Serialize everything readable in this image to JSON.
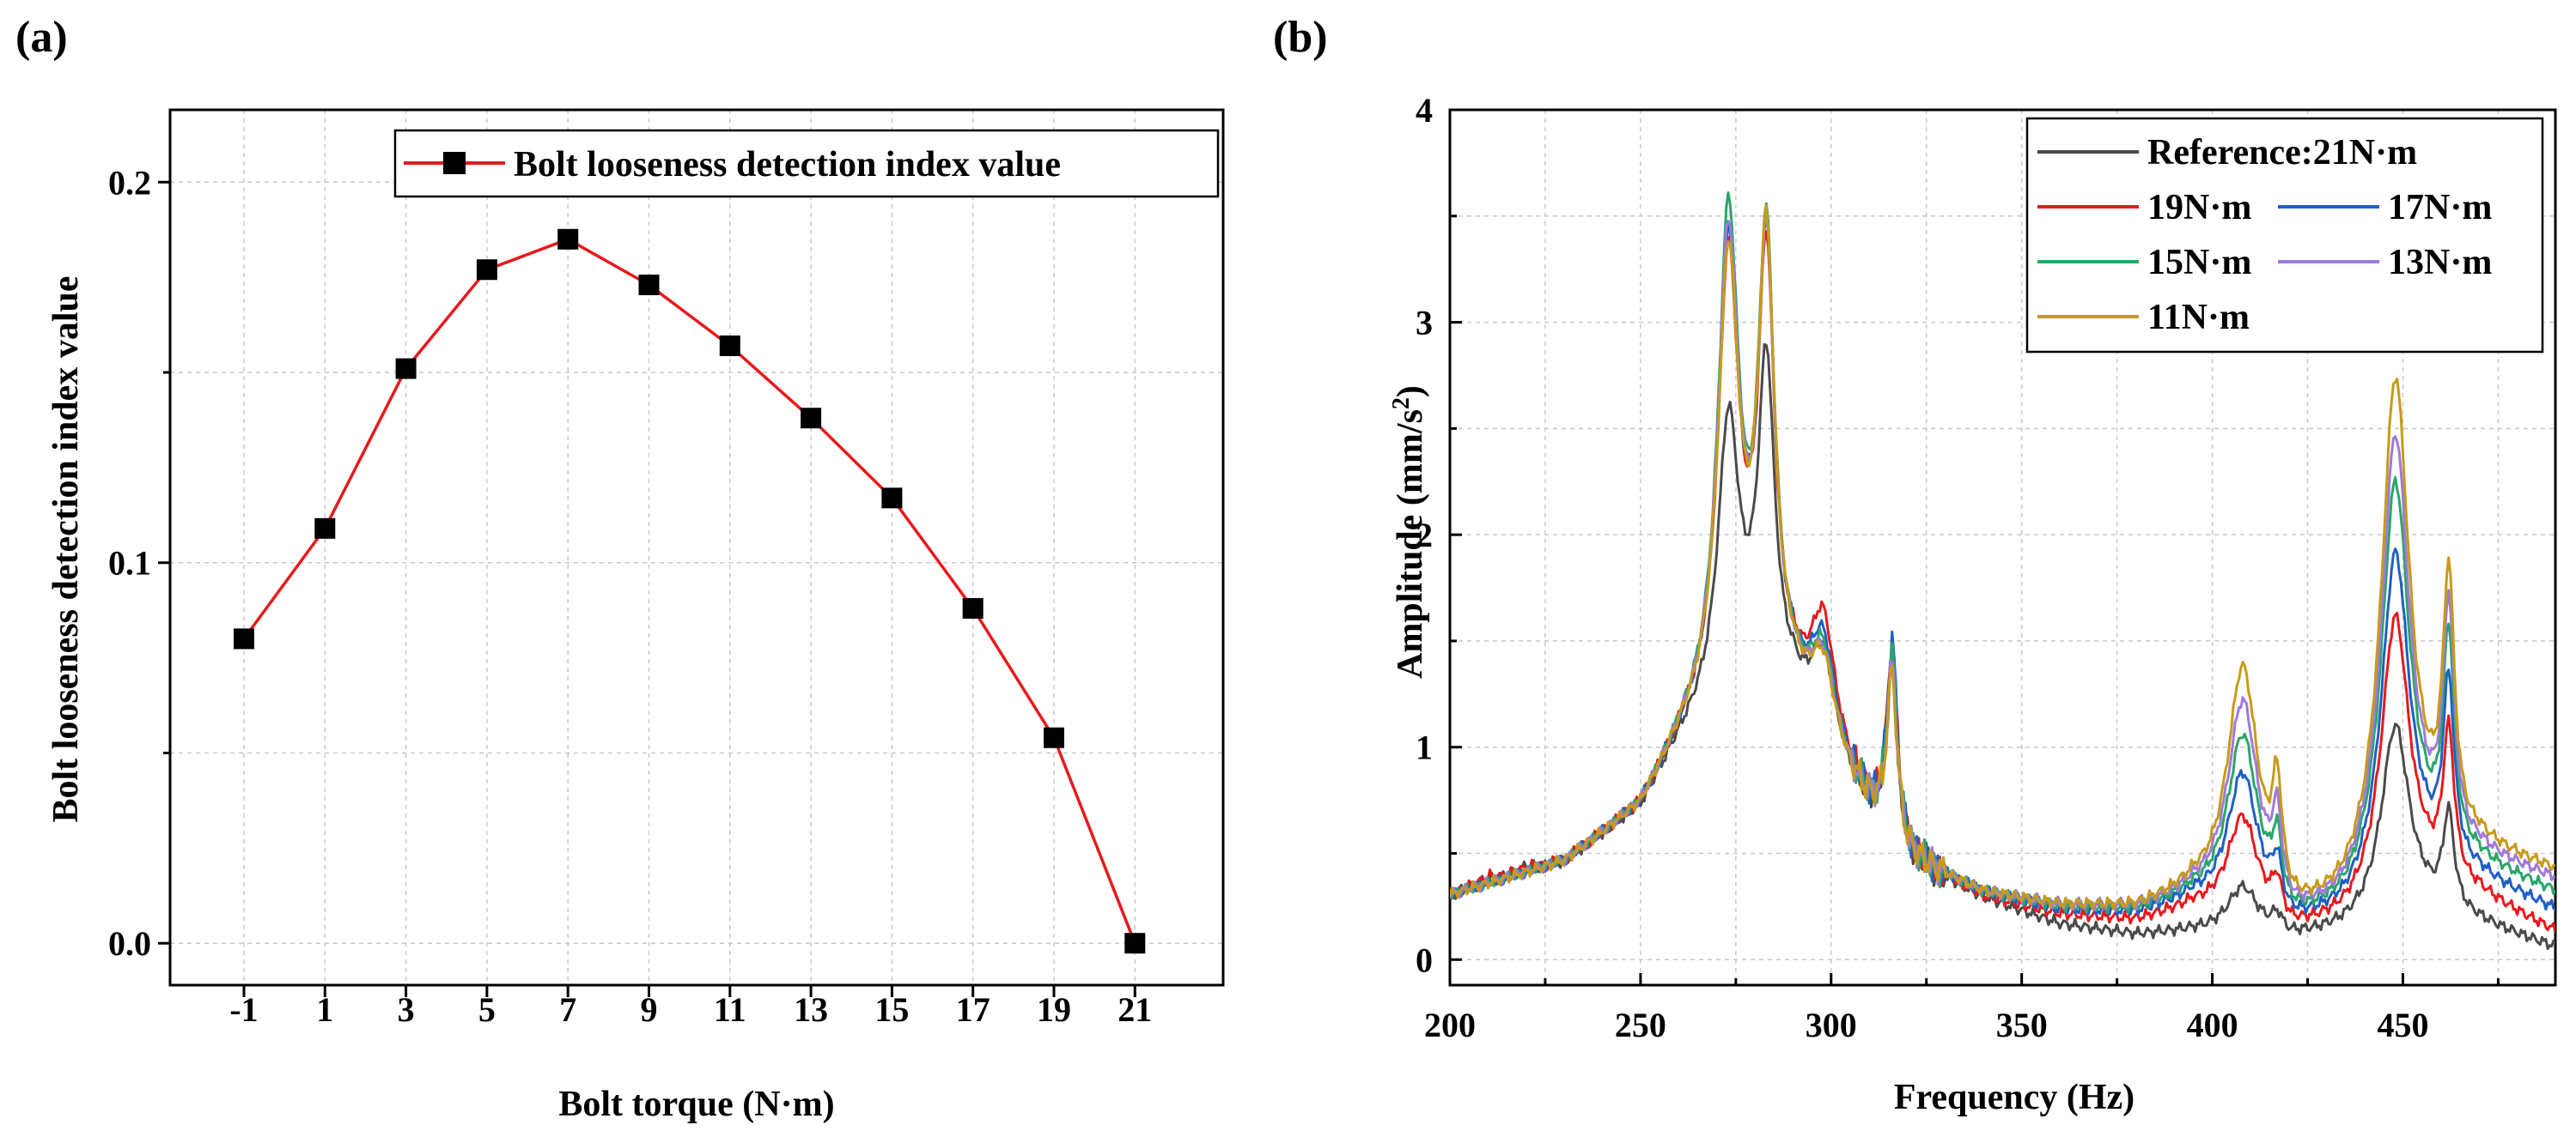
{
  "chart_data": [
    {
      "panel_label": "(a)",
      "type": "line",
      "title": "",
      "xlabel": "Bolt torque (N·m)",
      "ylabel": "Bolt looseness detection index value",
      "categories": [
        "-1",
        "1",
        "3",
        "5",
        "7",
        "9",
        "11",
        "13",
        "15",
        "17",
        "19",
        "21"
      ],
      "series": [
        {
          "name": "Bolt looseness detection index value",
          "color": "#e8191c",
          "marker": "square",
          "values": [
            0.08,
            0.109,
            0.151,
            0.177,
            0.185,
            0.173,
            0.157,
            0.138,
            0.117,
            0.088,
            0.054,
            0.0
          ]
        }
      ],
      "y_ticks": [
        0.0,
        0.1,
        0.2
      ],
      "y_tick_labels": [
        "0.0",
        "0.1",
        "0.2"
      ],
      "ylim": [
        -0.011,
        0.219
      ],
      "grid": true,
      "legend": "top-right"
    },
    {
      "panel_label": "(b)",
      "type": "line",
      "title": "",
      "xlabel": "Frequency (Hz)",
      "ylabel": "Amplitude (mm/s",
      "ylabel_sup": "2",
      "ylabel_close": ")",
      "xlim": [
        200,
        490
      ],
      "ylim": [
        -0.12,
        4.0
      ],
      "x_ticks": [
        200,
        250,
        300,
        350,
        400,
        450
      ],
      "x_tick_labels": [
        "200",
        "250",
        "300",
        "350",
        "400",
        "450"
      ],
      "y_ticks": [
        0,
        1,
        2,
        3,
        4
      ],
      "y_tick_labels": [
        "0",
        "1",
        "2",
        "3",
        "4"
      ],
      "grid": true,
      "legend": "top-right",
      "peak_positions_hz": [
        210,
        220,
        273,
        278,
        283,
        298,
        316,
        408,
        417,
        448,
        462
      ],
      "series": [
        {
          "name": "Reference:21N·m",
          "color": "#4a4a4a",
          "baseline": [
            [
              200,
              0.3
            ],
            [
              230,
              0.45
            ],
            [
              250,
              0.7
            ],
            [
              260,
              1.0
            ],
            [
              275,
              1.35
            ],
            [
              290,
              1.2
            ],
            [
              300,
              0.9
            ],
            [
              320,
              0.45
            ],
            [
              340,
              0.28
            ],
            [
              360,
              0.16
            ],
            [
              380,
              0.11
            ],
            [
              395,
              0.12
            ],
            [
              420,
              0.08
            ],
            [
              435,
              0.12
            ],
            [
              455,
              0.2
            ],
            [
              470,
              0.16
            ],
            [
              490,
              0.05
            ]
          ],
          "peaks": [
            0.02,
            0.03,
            1.2,
            0.0,
            1.5,
            0.45,
            0.85,
            0.23,
            0.08,
            0.92,
            0.45
          ]
        },
        {
          "name": "19N·m",
          "color": "#e8191c",
          "baseline": [
            [
              200,
              0.3
            ],
            [
              230,
              0.45
            ],
            [
              250,
              0.7
            ],
            [
              260,
              1.0
            ],
            [
              275,
              1.35
            ],
            [
              290,
              1.2
            ],
            [
              300,
              0.9
            ],
            [
              320,
              0.45
            ],
            [
              340,
              0.28
            ],
            [
              360,
              0.2
            ],
            [
              380,
              0.17
            ],
            [
              395,
              0.22
            ],
            [
              420,
              0.09
            ],
            [
              435,
              0.15
            ],
            [
              455,
              0.3
            ],
            [
              470,
              0.28
            ],
            [
              490,
              0.12
            ]
          ],
          "peaks": [
            0.03,
            0.02,
            1.95,
            0.0,
            1.95,
            0.6,
            0.9,
            0.5,
            0.17,
            1.35,
            0.7
          ]
        },
        {
          "name": "17N·m",
          "color": "#1f5fc4",
          "baseline": [
            [
              200,
              0.3
            ],
            [
              230,
              0.45
            ],
            [
              250,
              0.7
            ],
            [
              260,
              1.0
            ],
            [
              275,
              1.35
            ],
            [
              290,
              1.2
            ],
            [
              300,
              0.9
            ],
            [
              320,
              0.45
            ],
            [
              340,
              0.3
            ],
            [
              360,
              0.22
            ],
            [
              380,
              0.2
            ],
            [
              395,
              0.25
            ],
            [
              420,
              0.1
            ],
            [
              435,
              0.17
            ],
            [
              455,
              0.36
            ],
            [
              470,
              0.36
            ],
            [
              490,
              0.22
            ]
          ],
          "peaks": [
            0.0,
            0.0,
            2.0,
            0.0,
            2.02,
            0.5,
            0.92,
            0.68,
            0.22,
            1.6,
            0.85
          ]
        },
        {
          "name": "15N·m",
          "color": "#2aa66a",
          "baseline": [
            [
              200,
              0.3
            ],
            [
              230,
              0.45
            ],
            [
              250,
              0.7
            ],
            [
              260,
              1.0
            ],
            [
              275,
              1.35
            ],
            [
              290,
              1.2
            ],
            [
              300,
              0.9
            ],
            [
              320,
              0.45
            ],
            [
              340,
              0.3
            ],
            [
              360,
              0.23
            ],
            [
              380,
              0.21
            ],
            [
              395,
              0.26
            ],
            [
              420,
              0.1
            ],
            [
              435,
              0.18
            ],
            [
              455,
              0.4
            ],
            [
              470,
              0.42
            ],
            [
              490,
              0.3
            ]
          ],
          "peaks": [
            0.0,
            0.0,
            2.15,
            0.0,
            2.05,
            0.45,
            0.85,
            0.85,
            0.3,
            1.9,
            1.0
          ]
        },
        {
          "name": "13N·m",
          "color": "#a07ad8",
          "baseline": [
            [
              200,
              0.3
            ],
            [
              230,
              0.45
            ],
            [
              250,
              0.7
            ],
            [
              260,
              1.0
            ],
            [
              275,
              1.35
            ],
            [
              290,
              1.2
            ],
            [
              300,
              0.9
            ],
            [
              320,
              0.45
            ],
            [
              340,
              0.3
            ],
            [
              360,
              0.24
            ],
            [
              380,
              0.22
            ],
            [
              395,
              0.27
            ],
            [
              420,
              0.1
            ],
            [
              435,
              0.19
            ],
            [
              455,
              0.42
            ],
            [
              470,
              0.46
            ],
            [
              490,
              0.36
            ]
          ],
          "peaks": [
            0.0,
            0.0,
            2.05,
            0.0,
            2.0,
            0.42,
            0.8,
            1.0,
            0.38,
            2.1,
            1.1
          ]
        },
        {
          "name": "11N·m",
          "color": "#c89a1a",
          "baseline": [
            [
              200,
              0.3
            ],
            [
              230,
              0.45
            ],
            [
              250,
              0.7
            ],
            [
              260,
              1.0
            ],
            [
              275,
              1.35
            ],
            [
              290,
              1.2
            ],
            [
              300,
              0.9
            ],
            [
              320,
              0.45
            ],
            [
              340,
              0.3
            ],
            [
              360,
              0.24
            ],
            [
              380,
              0.22
            ],
            [
              395,
              0.28
            ],
            [
              420,
              0.1
            ],
            [
              435,
              0.2
            ],
            [
              455,
              0.44
            ],
            [
              470,
              0.5
            ],
            [
              490,
              0.4
            ]
          ],
          "peaks": [
            0.0,
            0.0,
            1.95,
            0.0,
            2.05,
            0.4,
            0.78,
            1.15,
            0.5,
            2.35,
            1.2
          ]
        }
      ]
    }
  ]
}
